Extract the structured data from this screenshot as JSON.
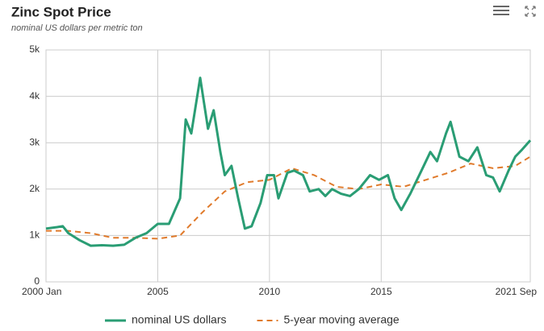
{
  "chart_data": {
    "type": "line",
    "title": "Zinc Spot Price",
    "subtitle": "nominal US dollars per metric ton",
    "xlim": [
      2000,
      2021.67
    ],
    "xticks": [
      {
        "value": 2000,
        "label": "2000 Jan"
      },
      2005,
      2010,
      2015,
      {
        "value": 2021.67,
        "label": "2021 Sep"
      }
    ],
    "ylim": [
      0,
      5000
    ],
    "yticks": [
      0,
      {
        "value": 1000,
        "label": "1k"
      },
      {
        "value": 2000,
        "label": "2k"
      },
      {
        "value": 3000,
        "label": "3k"
      },
      {
        "value": 4000,
        "label": "4k"
      },
      {
        "value": 5000,
        "label": "5k"
      }
    ],
    "grid": true,
    "legend": "bottom",
    "series": [
      {
        "name": "nominal US dollars",
        "color": "#2a9d74",
        "dash": false,
        "x": [
          2000.0,
          2000.5,
          2000.75,
          2001.0,
          2001.5,
          2002.0,
          2002.5,
          2003.0,
          2003.5,
          2004.0,
          2004.5,
          2005.0,
          2005.5,
          2006.0,
          2006.25,
          2006.5,
          2006.9,
          2007.25,
          2007.5,
          2007.8,
          2008.0,
          2008.3,
          2008.6,
          2008.9,
          2009.2,
          2009.6,
          2009.9,
          2010.2,
          2010.4,
          2010.8,
          2011.1,
          2011.5,
          2011.8,
          2012.2,
          2012.5,
          2012.8,
          2013.2,
          2013.6,
          2014.0,
          2014.5,
          2014.9,
          2015.3,
          2015.6,
          2015.9,
          2016.3,
          2016.8,
          2017.2,
          2017.5,
          2017.9,
          2018.1,
          2018.5,
          2018.9,
          2019.3,
          2019.7,
          2020.0,
          2020.3,
          2020.7,
          2021.0,
          2021.3,
          2021.67
        ],
        "values": [
          1150,
          1180,
          1200,
          1050,
          900,
          780,
          790,
          780,
          800,
          950,
          1050,
          1250,
          1250,
          1800,
          3500,
          3200,
          4400,
          3300,
          3700,
          2800,
          2300,
          2500,
          1800,
          1150,
          1200,
          1700,
          2300,
          2300,
          1800,
          2350,
          2400,
          2300,
          1950,
          2000,
          1850,
          2000,
          1900,
          1850,
          2000,
          2300,
          2200,
          2300,
          1800,
          1550,
          1900,
          2400,
          2800,
          2600,
          3200,
          3450,
          2700,
          2600,
          2900,
          2300,
          2250,
          1950,
          2400,
          2700,
          2850,
          3050
        ]
      },
      {
        "name": "5-year moving average",
        "color": "#e07a2b",
        "dash": true,
        "x": [
          2000,
          2001,
          2002,
          2003,
          2004,
          2005,
          2006,
          2007,
          2008,
          2009,
          2010,
          2011,
          2012,
          2013,
          2014,
          2015,
          2016,
          2017,
          2018,
          2019,
          2020,
          2021,
          2021.67
        ],
        "values": [
          1100,
          1100,
          1050,
          950,
          950,
          930,
          1000,
          1500,
          1950,
          2150,
          2200,
          2450,
          2300,
          2050,
          2000,
          2100,
          2050,
          2200,
          2350,
          2550,
          2450,
          2500,
          2700
        ]
      }
    ]
  }
}
